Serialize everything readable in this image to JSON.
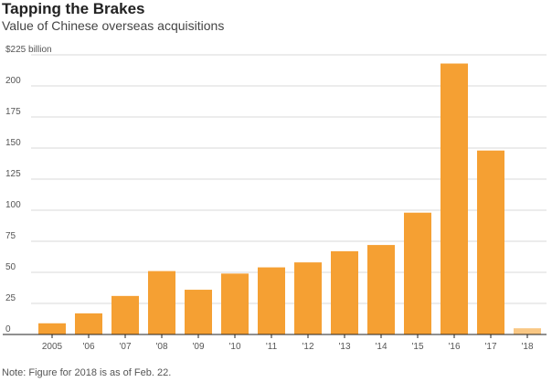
{
  "chart_data": {
    "type": "bar",
    "title": "Tapping the Brakes",
    "subtitle": "Value of Chinese overseas acquisitions",
    "ylabel": "",
    "y_unit_label": "$225 billion",
    "ylim": [
      0,
      225
    ],
    "yticks": [
      0,
      25,
      50,
      75,
      100,
      125,
      150,
      175,
      200,
      225
    ],
    "ytick_labels": [
      "0",
      "25",
      "50",
      "75",
      "100",
      "125",
      "150",
      "175",
      "200",
      "$225 billion"
    ],
    "categories": [
      "2005",
      "'06",
      "'07",
      "'08",
      "'09",
      "'10",
      "'11",
      "'12",
      "'13",
      "'14",
      "'15",
      "'16",
      "'17",
      "'18"
    ],
    "values": [
      9,
      17,
      31,
      51,
      36,
      49,
      54,
      58,
      67,
      72,
      98,
      218,
      148,
      5
    ],
    "bar_color": "#f5a033",
    "highlight_color": "#f9c783",
    "highlight_category": "'18",
    "grid": true,
    "note": "Note: Figure for 2018 is as of Feb. 22."
  }
}
